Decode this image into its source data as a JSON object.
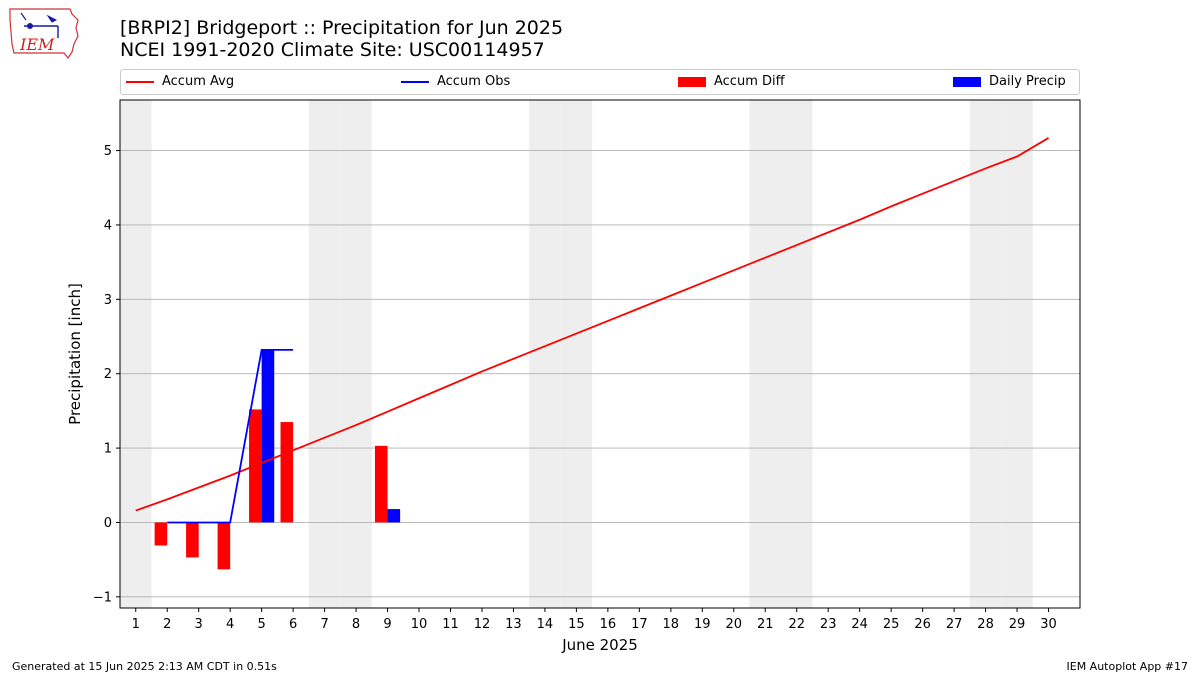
{
  "header": {
    "logo_text": "IEM",
    "title_line1": "[BRPI2] Bridgeport :: Precipitation for Jun 2025",
    "title_line2": "NCEI 1991-2020 Climate Site: USC00114957"
  },
  "legend": {
    "items": [
      {
        "label": "Accum Avg",
        "color": "#ff0000",
        "kind": "line"
      },
      {
        "label": "Accum Obs",
        "color": "#0000ff",
        "kind": "line"
      },
      {
        "label": "Accum Diff",
        "color": "#ff0000",
        "kind": "box"
      },
      {
        "label": "Daily Precip",
        "color": "#0000ff",
        "kind": "box"
      }
    ]
  },
  "footer": {
    "left": "Generated at 15 Jun 2025 2:13 AM CDT in 0.51s",
    "right": "IEM Autoplot App #17"
  },
  "chart_data": {
    "type": "bar",
    "xlabel": "June 2025",
    "ylabel": "Precipitation [inch]",
    "xlim": [
      0.5,
      31
    ],
    "ylim": [
      -1.15,
      5.68
    ],
    "x_ticks": [
      1,
      2,
      3,
      4,
      5,
      6,
      7,
      8,
      9,
      10,
      11,
      12,
      13,
      14,
      15,
      16,
      17,
      18,
      19,
      20,
      21,
      22,
      23,
      24,
      25,
      26,
      27,
      28,
      29,
      30
    ],
    "y_ticks": [
      -1,
      0,
      1,
      2,
      3,
      4,
      5
    ],
    "grid": "horizontal",
    "legend_position": "top",
    "weekend_days": [
      1,
      7,
      8,
      14,
      15,
      21,
      22,
      28,
      29
    ],
    "accum_avg": {
      "name": "Accum Avg",
      "color": "#ff0000",
      "x": [
        1,
        2,
        3,
        4,
        5,
        6,
        7,
        8,
        9,
        10,
        11,
        12,
        13,
        14,
        15,
        16,
        17,
        18,
        19,
        20,
        21,
        22,
        23,
        24,
        25,
        26,
        27,
        28,
        29,
        30
      ],
      "values": [
        0.16,
        0.31,
        0.47,
        0.63,
        0.8,
        0.97,
        1.14,
        1.31,
        1.49,
        1.67,
        1.85,
        2.03,
        2.2,
        2.37,
        2.54,
        2.71,
        2.88,
        3.05,
        3.22,
        3.39,
        3.56,
        3.73,
        3.9,
        4.07,
        4.25,
        4.42,
        4.59,
        4.76,
        4.92,
        5.17
      ]
    },
    "accum_obs": {
      "name": "Accum Obs",
      "color": "#0000ff",
      "x": [
        2,
        3,
        4,
        5,
        6
      ],
      "values": [
        0.0,
        0.0,
        0.0,
        2.32,
        2.32
      ]
    },
    "accum_diff": {
      "name": "Accum Diff",
      "color": "#ff0000",
      "x": [
        2,
        3,
        4,
        5,
        6,
        9
      ],
      "values": [
        -0.31,
        -0.47,
        -0.63,
        1.52,
        1.35,
        1.03
      ]
    },
    "daily_precip": {
      "name": "Daily Precip",
      "color": "#0000ff",
      "x": [
        5,
        9
      ],
      "values": [
        2.32,
        0.18
      ]
    }
  }
}
